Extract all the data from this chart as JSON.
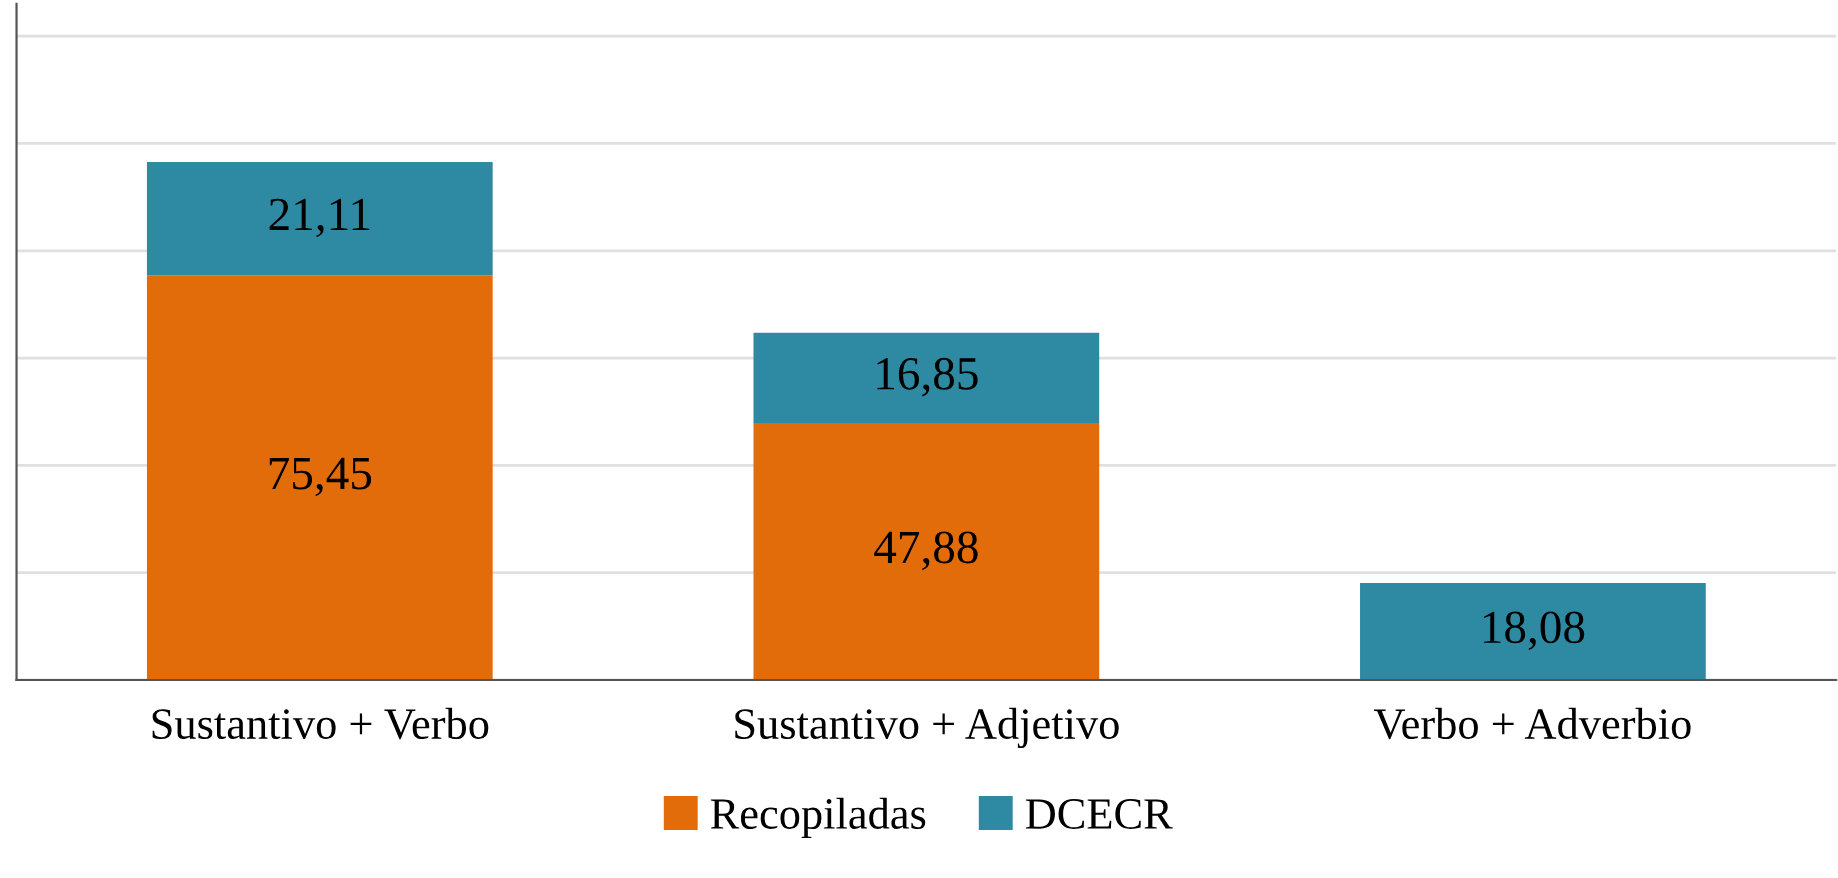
{
  "chart_data": {
    "type": "bar",
    "stacked": true,
    "categories": [
      "Sustantivo + Verbo",
      "Sustantivo + Adjetivo",
      "Verbo + Adverbio"
    ],
    "series": [
      {
        "name": "Recopiladas",
        "color": "#e36c0a",
        "values": [
          75.45,
          47.88,
          null
        ],
        "value_labels": [
          "75,45",
          "47,88",
          null
        ]
      },
      {
        "name": "DCECR",
        "color": "#2e8aa3",
        "values": [
          21.11,
          16.85,
          18.08
        ],
        "value_labels": [
          "21,11",
          "16,85",
          "18,08"
        ]
      }
    ],
    "ylim": [
      0,
      126
    ],
    "yticks": [
      {
        "value": 0,
        "label": null
      },
      {
        "value": 20,
        "label": null
      },
      {
        "value": 40,
        "label": null
      },
      {
        "value": 60,
        "label": null
      },
      {
        "value": 80,
        "label": null
      },
      {
        "value": 100,
        "label": null
      },
      {
        "value": 120,
        "label": null
      }
    ],
    "tick_labels": "x",
    "grid": "y",
    "legend": "bottom"
  }
}
